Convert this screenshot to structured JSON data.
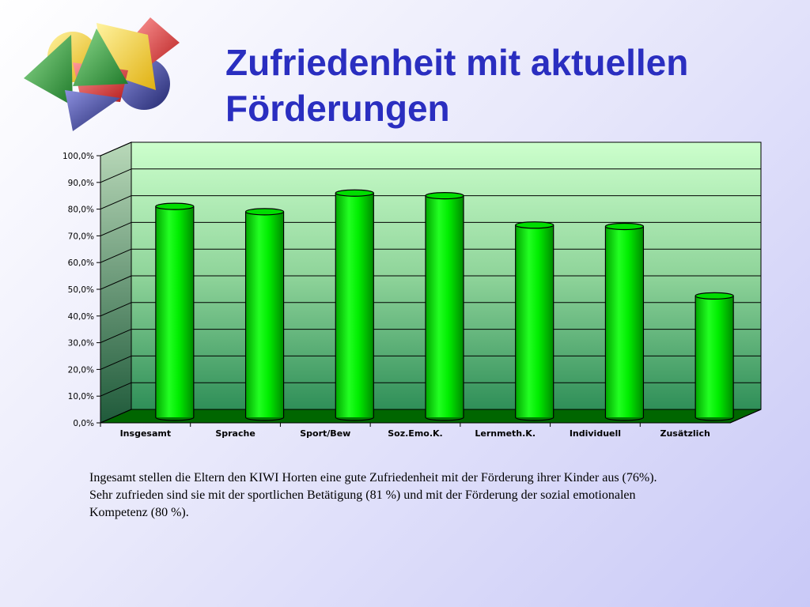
{
  "title": {
    "line1": "Zufriedenheit mit aktuellen",
    "line2": "Förderungen"
  },
  "logo": {
    "icon": "colored-geometric-shapes-logo",
    "colors": [
      "#f4d03f",
      "#2f9e3a",
      "#e23b3b",
      "#3a3fa0"
    ]
  },
  "chart_data": {
    "type": "bar",
    "categories": [
      "Insgesamt",
      "Sprache",
      "Sport/Bew",
      "Soz.Emo.K.",
      "Lernmeth.K.",
      "Individuell",
      "Zusätzlich"
    ],
    "series": [
      {
        "values": [
          76,
          74,
          81,
          80,
          69,
          68.5,
          42.5
        ]
      }
    ],
    "yticks": [
      "0,0%",
      "10,0%",
      "20,0%",
      "30,0%",
      "40,0%",
      "50,0%",
      "60,0%",
      "70,0%",
      "80,0%",
      "90,0%",
      "100,0%"
    ],
    "ylim": [
      0,
      100
    ],
    "xlabel": "",
    "ylabel": "",
    "grid": true,
    "style": "3d-cylinder",
    "colors": {
      "bar": "#00ff00",
      "bar_dark": "#007a00",
      "wall_top": "#ccffcc",
      "wall_bottom": "#2f8f58",
      "floor": "#006600"
    }
  },
  "caption": {
    "line1": "Ingesamt stellen die Eltern den KIWI Horten eine gute Zufriedenheit mit der Förderung ihrer Kinder aus (76%).",
    "line2": "Sehr zufrieden sind sie mit der sportlichen Betätigung (81 %) und mit der Förderung der sozial emotionalen",
    "line3": "Kompetenz (80 %)."
  }
}
